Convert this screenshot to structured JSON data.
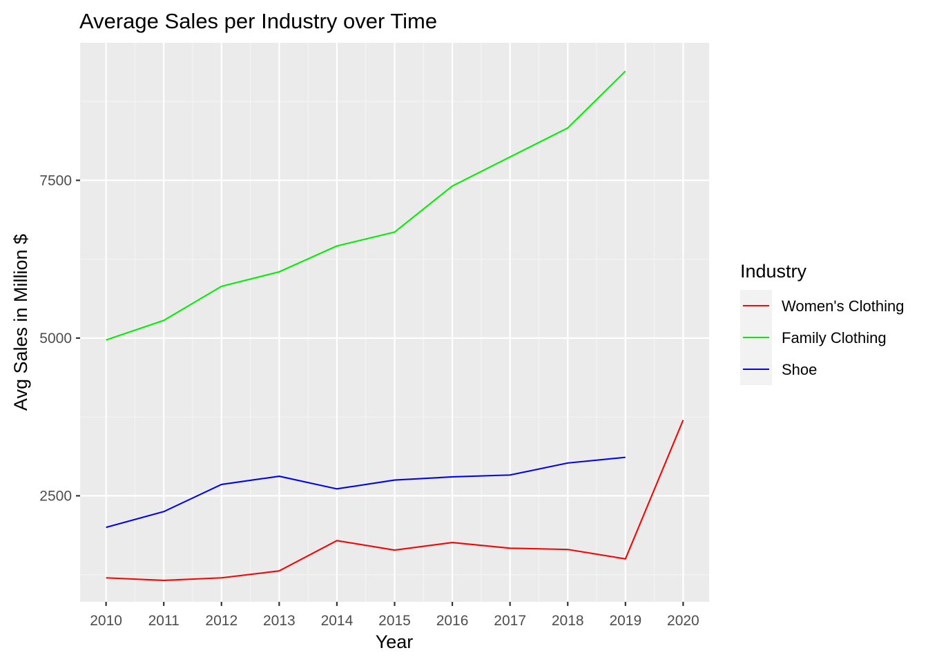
{
  "chart_data": {
    "type": "line",
    "title": "Average Sales per Industry over Time",
    "xlabel": "Year",
    "ylabel": "Avg Sales in Million $",
    "x": [
      2010,
      2011,
      2012,
      2013,
      2014,
      2015,
      2016,
      2017,
      2018,
      2019,
      2020
    ],
    "x_tick_labels": [
      "2010",
      "2011",
      "2012",
      "2013",
      "2014",
      "2015",
      "2016",
      "2017",
      "2018",
      "2019",
      "2020"
    ],
    "xlim": [
      2009.55,
      2020.45
    ],
    "ylim": [
      820,
      9680
    ],
    "y_ticks": [
      2500,
      5000,
      7500
    ],
    "y_tick_labels": [
      "2500",
      "5000",
      "7500"
    ],
    "grid": true,
    "legend_position": "right",
    "legend_title": "Industry",
    "series": [
      {
        "name": "Women's Clothing",
        "color": "#ff0000",
        "x": [
          2010,
          2011,
          2012,
          2013,
          2014,
          2015,
          2016,
          2017,
          2018,
          2019,
          2020
        ],
        "values": [
          1200,
          1160,
          1200,
          1310,
          1790,
          1640,
          1760,
          1670,
          1650,
          1500,
          3700
        ]
      },
      {
        "name": "Family Clothing",
        "color": "#00ee00",
        "x": [
          2010,
          2011,
          2012,
          2013,
          2014,
          2015,
          2016,
          2017,
          2018,
          2019
        ],
        "values": [
          4970,
          5280,
          5820,
          6050,
          6460,
          6680,
          7410,
          7870,
          8330,
          9230
        ]
      },
      {
        "name": "Shoe",
        "color": "#0000ff",
        "x": [
          2010,
          2011,
          2012,
          2013,
          2014,
          2015,
          2016,
          2017,
          2018,
          2019
        ],
        "values": [
          2000,
          2250,
          2680,
          2810,
          2610,
          2750,
          2800,
          2830,
          3020,
          3110
        ]
      }
    ]
  }
}
